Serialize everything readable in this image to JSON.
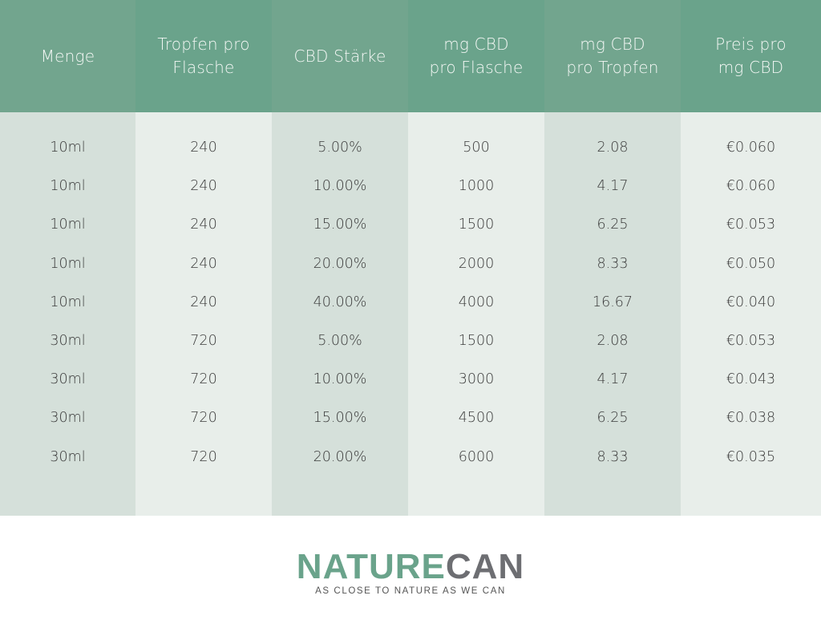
{
  "table": {
    "headers": [
      "Menge",
      "Tropfen pro\nFlasche",
      "CBD Stärke",
      "mg CBD\npro Flasche",
      "mg CBD\npro Tropfen",
      "Preis pro\nmg CBD"
    ],
    "header_lines": [
      [
        "Menge"
      ],
      [
        "Tropfen pro",
        "Flasche"
      ],
      [
        "CBD Stärke"
      ],
      [
        "mg CBD",
        "pro Flasche"
      ],
      [
        "mg CBD",
        "pro Tropfen"
      ],
      [
        "Preis pro",
        "mg CBD"
      ]
    ],
    "rows": [
      [
        "10ml",
        "240",
        "5.00%",
        "500",
        "2.08",
        "€0.060"
      ],
      [
        "10ml",
        "240",
        "10.00%",
        "1000",
        "4.17",
        "€0.060"
      ],
      [
        "10ml",
        "240",
        "15.00%",
        "1500",
        "6.25",
        "€0.053"
      ],
      [
        "10ml",
        "240",
        "20.00%",
        "2000",
        "8.33",
        "€0.050"
      ],
      [
        "10ml",
        "240",
        "40.00%",
        "4000",
        "16.67",
        "€0.040"
      ],
      [
        "30ml",
        "720",
        "5.00%",
        "1500",
        "2.08",
        "€0.053"
      ],
      [
        "30ml",
        "720",
        "10.00%",
        "3000",
        "4.17",
        "€0.043"
      ],
      [
        "30ml",
        "720",
        "15.00%",
        "4500",
        "6.25",
        "€0.038"
      ],
      [
        "30ml",
        "720",
        "20.00%",
        "6000",
        "8.33",
        "€0.035"
      ]
    ],
    "colors": {
      "header_green": "#6aa38b",
      "col_dark": "#d5e0da",
      "col_light": "#e8eeea",
      "text": "#3b3b3b"
    }
  },
  "brand": {
    "name_green": "NATURE",
    "name_gray": "CAN",
    "tagline": "AS CLOSE TO NATURE AS WE CAN",
    "colors": {
      "green": "#6aa38b",
      "gray": "#6d6e72"
    }
  }
}
